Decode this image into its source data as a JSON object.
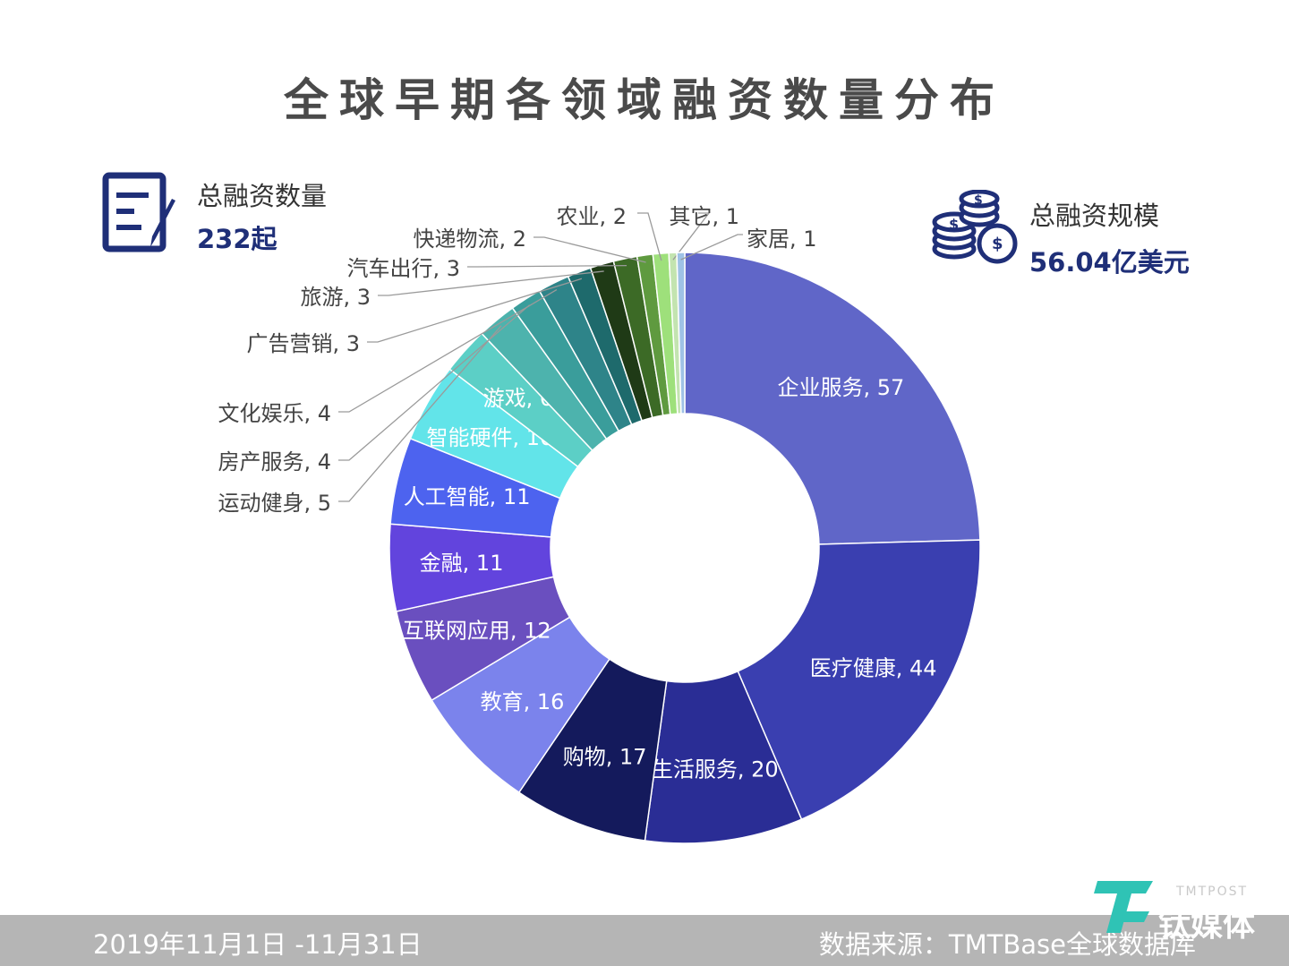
{
  "title": "全球早期各领域融资数量分布",
  "stats": {
    "count_label": "总融资数量",
    "count_value": "232起",
    "scale_label": "总融资规模",
    "scale_value": "56.04亿美元"
  },
  "chart_data": {
    "type": "pie",
    "title": "全球早期各领域融资数量分布",
    "total": 232,
    "slices": [
      {
        "label": "企业服务",
        "value": 57,
        "color": "#6066c8"
      },
      {
        "label": "医疗健康",
        "value": 44,
        "color": "#3a3fb0"
      },
      {
        "label": "生活服务",
        "value": 20,
        "color": "#2a2d95"
      },
      {
        "label": "购物",
        "value": 17,
        "color": "#141a5c"
      },
      {
        "label": "教育",
        "value": 16,
        "color": "#7b83ec"
      },
      {
        "label": "互联网应用",
        "value": 12,
        "color": "#6a4fbf"
      },
      {
        "label": "金融",
        "value": 11,
        "color": "#6244dd"
      },
      {
        "label": "人工智能",
        "value": 11,
        "color": "#4d63ef"
      },
      {
        "label": "智能硬件",
        "value": 10,
        "color": "#62e4e9"
      },
      {
        "label": "游戏",
        "value": 6,
        "color": "#5ccfc6"
      },
      {
        "label": "运动健身",
        "value": 5,
        "color": "#4db3ad"
      },
      {
        "label": "房产服务",
        "value": 4,
        "color": "#3a9d9b"
      },
      {
        "label": "文化娱乐",
        "value": 4,
        "color": "#2e8489"
      },
      {
        "label": "广告营销",
        "value": 3,
        "color": "#1e6a6c"
      },
      {
        "label": "旅游",
        "value": 3,
        "color": "#1f3a16"
      },
      {
        "label": "汽车出行",
        "value": 3,
        "color": "#3c6a26"
      },
      {
        "label": "快递物流",
        "value": 2,
        "color": "#5f9a3f"
      },
      {
        "label": "农业",
        "value": 2,
        "color": "#9ee07b"
      },
      {
        "label": "其它",
        "value": 1,
        "color": "#c3e4b0"
      },
      {
        "label": "家居",
        "value": 1,
        "color": "#9fc2e6"
      }
    ]
  },
  "footer": {
    "date_range": "2019年11月1日 -11月31日",
    "source": "数据来源：TMTBase全球数据库"
  },
  "brand": {
    "name_en": "TMTPOST",
    "name_cn": "钛媒体"
  },
  "colors": {
    "title": "#4a4a4a",
    "accent": "#1f2f78",
    "footer_bg": "#b5b5b5"
  }
}
